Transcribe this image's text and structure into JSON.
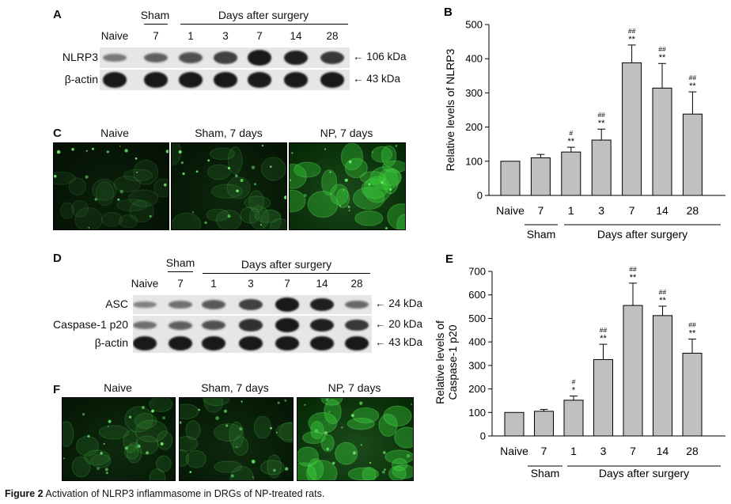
{
  "caption": {
    "label": "Figure 2",
    "text": "Activation of NLRP3 inflammasome in DRGs of NP-treated rats."
  },
  "panel_a": {
    "letter": "A",
    "sham_label": "Sham",
    "days_label": "Days after surgery",
    "lanes": [
      "Naive",
      "7",
      "1",
      "3",
      "7",
      "14",
      "28"
    ],
    "rows": [
      {
        "label": "NLRP3",
        "kda": "106 kDa",
        "intensity": [
          0.35,
          0.5,
          0.6,
          0.7,
          0.95,
          0.9,
          0.75
        ]
      },
      {
        "label": "β-actin",
        "kda": "43 kDa",
        "intensity": [
          0.95,
          0.95,
          0.95,
          0.95,
          0.95,
          0.95,
          0.95
        ]
      }
    ]
  },
  "panel_c": {
    "letter": "C",
    "images": [
      "Naive",
      "Sham, 7 days",
      "NP, 7 days"
    ]
  },
  "panel_d": {
    "letter": "D",
    "sham_label": "Sham",
    "days_label": "Days after surgery",
    "lanes": [
      "Naive",
      "7",
      "1",
      "3",
      "7",
      "14",
      "28"
    ],
    "rows": [
      {
        "label": "ASC",
        "kda": "24 kDa",
        "intensity": [
          0.3,
          0.4,
          0.55,
          0.7,
          0.95,
          0.9,
          0.45
        ]
      },
      {
        "label": "Caspase-1 p20",
        "kda": "20 kDa",
        "intensity": [
          0.4,
          0.5,
          0.6,
          0.8,
          0.95,
          0.9,
          0.75
        ]
      },
      {
        "label": "β-actin",
        "kda": "43 kDa",
        "intensity": [
          0.95,
          0.95,
          0.95,
          0.95,
          0.95,
          0.95,
          0.95
        ]
      }
    ]
  },
  "panel_f": {
    "letter": "F",
    "images": [
      "Naive",
      "Sham, 7 days",
      "NP, 7 days"
    ]
  },
  "chart_data": [
    {
      "letter": "B",
      "type": "bar",
      "categories": [
        "Naive",
        "7",
        "1",
        "3",
        "7",
        "14",
        "28"
      ],
      "values": [
        100,
        110,
        127,
        162,
        388,
        314,
        238
      ],
      "errors": [
        0,
        10,
        14,
        32,
        52,
        72,
        65
      ],
      "sig_star": [
        "",
        "",
        "**",
        "**",
        "**",
        "**",
        "**"
      ],
      "sig_hash": [
        "",
        "",
        "#",
        "##",
        "##",
        "##",
        "##"
      ],
      "ylabel": "Relative levels of NLRP3",
      "ylim": [
        0,
        500
      ],
      "yticks": [
        0,
        100,
        200,
        300,
        400,
        500
      ],
      "group_labels": {
        "sham": "Sham",
        "days": "Days after surgery"
      },
      "bar_color": "#c0c0c0"
    },
    {
      "letter": "E",
      "type": "bar",
      "categories": [
        "Naive",
        "7",
        "1",
        "3",
        "7",
        "14",
        "28"
      ],
      "values": [
        100,
        105,
        152,
        325,
        555,
        512,
        352
      ],
      "errors": [
        0,
        8,
        18,
        65,
        95,
        40,
        60
      ],
      "sig_star": [
        "",
        "",
        "*",
        "**",
        "**",
        "**",
        "**"
      ],
      "sig_hash": [
        "",
        "",
        "#",
        "##",
        "##",
        "##",
        "##"
      ],
      "ylabel_lines": [
        "Relative levels of",
        "Caspase-1 p20"
      ],
      "ylim": [
        0,
        700
      ],
      "yticks": [
        0,
        100,
        200,
        300,
        400,
        500,
        600,
        700
      ],
      "group_labels": {
        "sham": "Sham",
        "days": "Days after surgery"
      },
      "bar_color": "#c0c0c0"
    }
  ]
}
